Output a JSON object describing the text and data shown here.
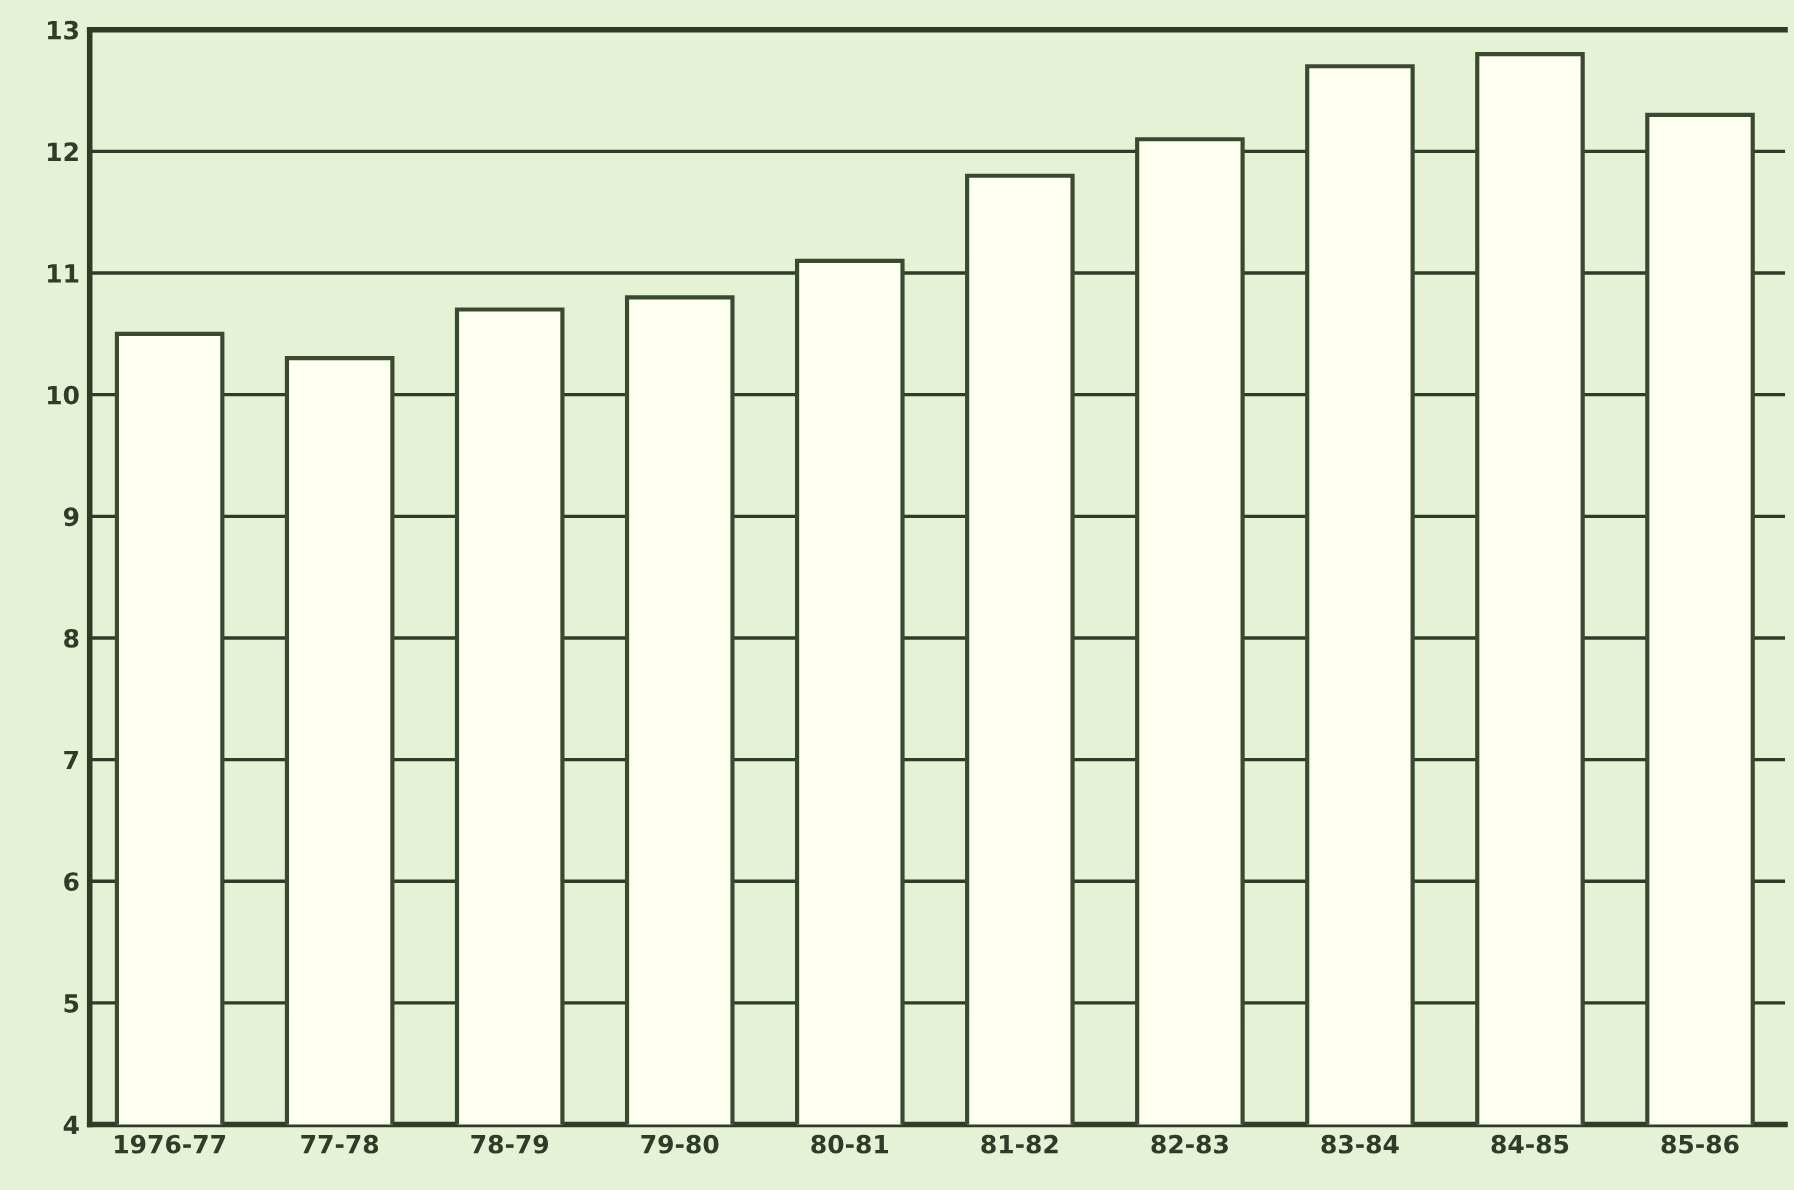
{
  "chart_data": {
    "type": "bar",
    "categories": [
      "1976-77",
      "77-78",
      "78-79",
      "79-80",
      "80-81",
      "81-82",
      "82-83",
      "83-84",
      "84-85",
      "85-86"
    ],
    "values": [
      10.5,
      10.3,
      10.7,
      10.8,
      11.1,
      11.8,
      12.1,
      12.7,
      12.8,
      12.3
    ],
    "color": "#fffff0",
    "ylim": [
      4,
      13
    ],
    "yticks": [
      4,
      5,
      6,
      7,
      8,
      9,
      10,
      11,
      12,
      13
    ],
    "grid": "y"
  }
}
